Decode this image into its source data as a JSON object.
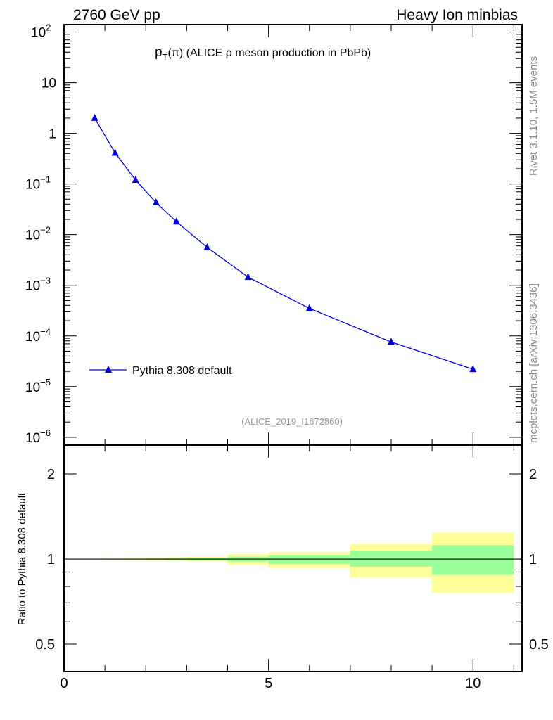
{
  "header": {
    "left": "2760 GeV pp",
    "right": "Heavy Ion minbias"
  },
  "side": {
    "rivet": "Rivet 3.1.10,  1.5M events",
    "mcplots": "mcplots.cern.ch [arXiv:1306.3436]"
  },
  "colors": {
    "series": "#0000dd",
    "band_outer": "#ffff99",
    "band_inner": "#99ff99"
  },
  "chart_data": [
    {
      "type": "line",
      "title_main": "p",
      "title_sub": "T",
      "title_rest": "(π) (ALICE ρ meson production in PbPb)",
      "watermark": "(ALICE_2019_I1672860)",
      "xlim": [
        0,
        11.2
      ],
      "ylim": [
        7e-07,
        140
      ],
      "yscale": "log",
      "ytick_labels": [
        {
          "v": 100,
          "b": "10",
          "e": "2"
        },
        {
          "v": 10,
          "b": "10",
          "e": ""
        },
        {
          "v": 1,
          "b": "1",
          "e": ""
        },
        {
          "v": 0.1,
          "b": "10",
          "e": "−1"
        },
        {
          "v": 0.01,
          "b": "10",
          "e": "−2"
        },
        {
          "v": 0.001,
          "b": "10",
          "e": "−3"
        },
        {
          "v": 0.0001,
          "b": "10",
          "e": "−4"
        },
        {
          "v": 1e-05,
          "b": "10",
          "e": "−5"
        },
        {
          "v": 1e-06,
          "b": "10",
          "e": "−6"
        }
      ],
      "legend": "top-left-lower",
      "series": [
        {
          "name": "Pythia 8.308 default",
          "x": [
            0.75,
            1.25,
            1.75,
            2.25,
            2.75,
            3.5,
            4.5,
            6,
            8,
            10
          ],
          "y": [
            2.0,
            0.41,
            0.12,
            0.043,
            0.018,
            0.0056,
            0.00145,
            0.00035,
            7.6e-05,
            2.2e-05
          ]
        }
      ]
    },
    {
      "type": "area",
      "ylabel": "Ratio to Pythia 8.308 default",
      "ylim": [
        0.4,
        2.53
      ],
      "yscale": "log",
      "ytick_labels": [
        {
          "v": 2,
          "t": "2"
        },
        {
          "v": 1,
          "t": "1"
        },
        {
          "v": 0.5,
          "t": "0.5"
        }
      ],
      "xtick_labels": [
        {
          "v": 0,
          "t": "0"
        },
        {
          "v": 5,
          "t": "5"
        },
        {
          "v": 10,
          "t": "10"
        }
      ],
      "bins": [
        [
          0.5,
          1
        ],
        [
          1,
          1.5
        ],
        [
          1.5,
          2
        ],
        [
          2,
          2.5
        ],
        [
          2.5,
          3
        ],
        [
          3,
          4
        ],
        [
          4,
          5
        ],
        [
          5,
          7
        ],
        [
          7,
          9
        ],
        [
          9,
          11
        ]
      ],
      "outer": [
        [
          0.998,
          1.002
        ],
        [
          0.995,
          1.005
        ],
        [
          0.993,
          1.007
        ],
        [
          0.99,
          1.01
        ],
        [
          0.985,
          1.015
        ],
        [
          0.98,
          1.02
        ],
        [
          0.955,
          1.04
        ],
        [
          0.93,
          1.06
        ],
        [
          0.86,
          1.13
        ],
        [
          0.76,
          1.24
        ]
      ],
      "inner": [
        [
          0.999,
          1.001
        ],
        [
          0.998,
          1.002
        ],
        [
          0.997,
          1.003
        ],
        [
          0.995,
          1.005
        ],
        [
          0.993,
          1.007
        ],
        [
          0.99,
          1.01
        ],
        [
          0.98,
          1.02
        ],
        [
          0.96,
          1.03
        ],
        [
          0.94,
          1.07
        ],
        [
          0.88,
          1.12
        ]
      ]
    }
  ]
}
